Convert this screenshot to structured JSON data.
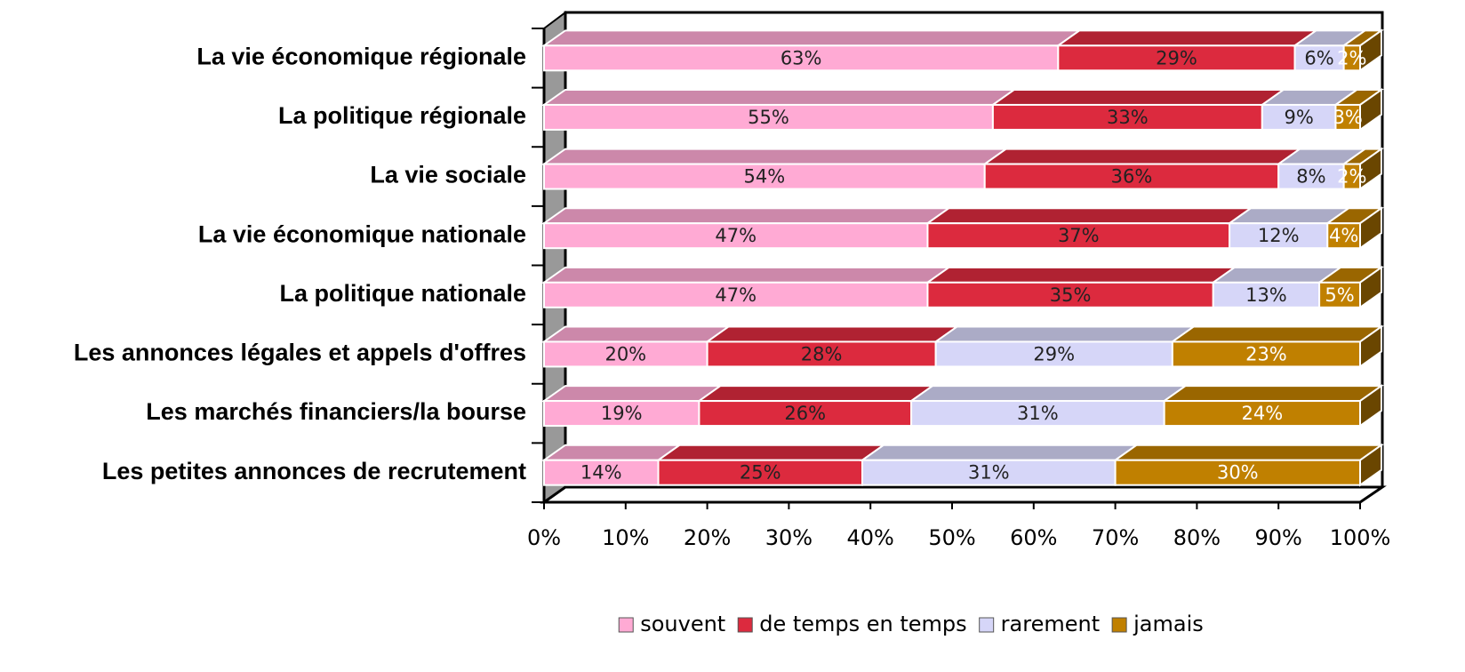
{
  "chart_data": {
    "type": "stacked-bar-3d",
    "categories": [
      "La vie économique régionale",
      "La politique régionale",
      "La vie sociale",
      "La vie économique nationale",
      "La politique nationale",
      "Les annonces légales et appels d'offres",
      "Les marchés financiers/la bourse",
      "Les petites annonces de recrutement"
    ],
    "series": [
      {
        "name": "souvent",
        "color": "#ffaad4",
        "label_color": "#222222",
        "values": [
          63,
          55,
          54,
          47,
          47,
          20,
          19,
          14
        ],
        "value_labels": [
          "63%",
          "55%",
          "54%",
          "47%",
          "47%",
          "20%",
          "19%",
          "14%"
        ]
      },
      {
        "name": "de temps en temps",
        "color": "#dc2a3e",
        "label_color": "#222222",
        "values": [
          29,
          33,
          36,
          37,
          35,
          28,
          26,
          25
        ],
        "value_labels": [
          "29%",
          "33%",
          "36%",
          "37%",
          "35%",
          "28%",
          "26%",
          "25%"
        ]
      },
      {
        "name": "rarement",
        "color": "#d6d6f8",
        "label_color": "#222222",
        "values": [
          6,
          9,
          8,
          12,
          13,
          29,
          31,
          31
        ],
        "value_labels": [
          "6%",
          "9%",
          "8%",
          "12%",
          "13%",
          "29%",
          "31%",
          "31%"
        ]
      },
      {
        "name": "jamais",
        "color": "#c08000",
        "label_color": "#ffffff",
        "values": [
          2,
          3,
          2,
          4,
          5,
          23,
          24,
          30
        ],
        "value_labels": [
          "2%",
          "3%",
          "2%",
          "4%",
          "5%",
          "23%",
          "24%",
          "30%"
        ]
      }
    ],
    "xlim": [
      0,
      100
    ],
    "xticks": [
      {
        "value": 0,
        "label": "0%"
      },
      {
        "value": 10,
        "label": "10%"
      },
      {
        "value": 20,
        "label": "20%"
      },
      {
        "value": 30,
        "label": "30%"
      },
      {
        "value": 40,
        "label": "40%"
      },
      {
        "value": 50,
        "label": "50%"
      },
      {
        "value": 60,
        "label": "60%"
      },
      {
        "value": 70,
        "label": "70%"
      },
      {
        "value": 80,
        "label": "80%"
      },
      {
        "value": 90,
        "label": "90%"
      },
      {
        "value": 100,
        "label": "100%"
      }
    ]
  }
}
